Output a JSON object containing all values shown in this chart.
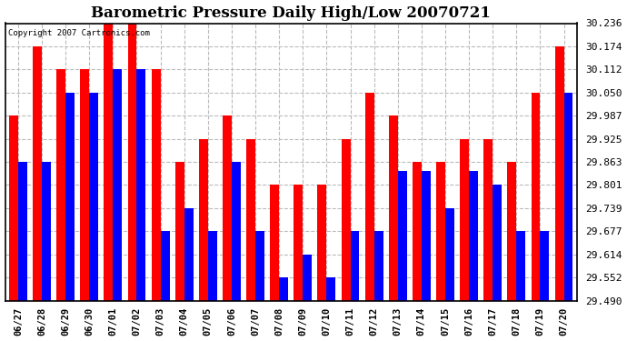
{
  "title": "Barometric Pressure Daily High/Low 20070721",
  "copyright": "Copyright 2007 Cartronics.com",
  "dates": [
    "06/27",
    "06/28",
    "06/29",
    "06/30",
    "07/01",
    "07/02",
    "07/03",
    "07/04",
    "07/05",
    "07/06",
    "07/07",
    "07/08",
    "07/09",
    "07/10",
    "07/11",
    "07/12",
    "07/13",
    "07/14",
    "07/15",
    "07/16",
    "07/17",
    "07/18",
    "07/19",
    "07/20"
  ],
  "highs": [
    29.987,
    30.174,
    30.112,
    30.112,
    30.236,
    30.236,
    30.112,
    29.863,
    29.925,
    29.987,
    29.925,
    29.801,
    29.801,
    29.801,
    29.925,
    30.05,
    29.987,
    29.863,
    29.863,
    29.925,
    29.925,
    29.863,
    30.05,
    30.174
  ],
  "lows": [
    29.863,
    29.863,
    30.05,
    30.05,
    30.112,
    30.112,
    29.677,
    29.739,
    29.677,
    29.863,
    29.677,
    29.552,
    29.614,
    29.552,
    29.677,
    29.677,
    29.839,
    29.839,
    29.739,
    29.839,
    29.801,
    29.677,
    29.677,
    30.05
  ],
  "ymin": 29.49,
  "ymax": 30.236,
  "yticks": [
    29.49,
    29.552,
    29.614,
    29.677,
    29.739,
    29.801,
    29.863,
    29.925,
    29.987,
    30.05,
    30.112,
    30.174,
    30.236
  ],
  "high_color": "#ff0000",
  "low_color": "#0000ff",
  "bg_color": "#ffffff",
  "grid_color": "#bbbbbb",
  "title_fontsize": 12,
  "bar_width": 0.38
}
